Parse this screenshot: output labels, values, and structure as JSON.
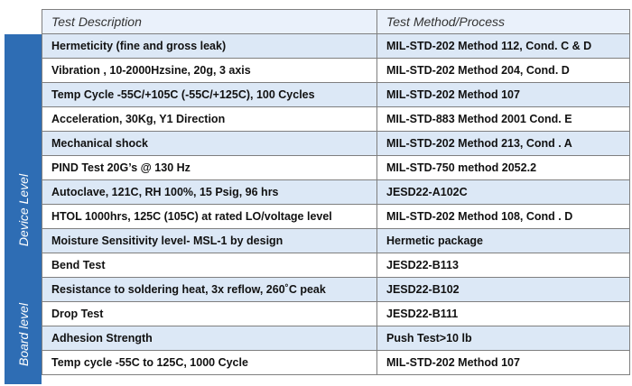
{
  "headers": {
    "description": "Test Description",
    "method": "Test Method/Process"
  },
  "groups": {
    "device": "Device Level",
    "board": "Board level"
  },
  "rows": [
    {
      "description": "Hermeticity  (fine and gross leak)",
      "method": "MIL-STD-202 Method 112, Cond. C & D"
    },
    {
      "description": "Vibration , 10-2000Hzsine, 20g, 3 axis",
      "method": "MIL-STD-202 Method 204, Cond. D"
    },
    {
      "description": "Temp Cycle -55C/+105C (-55C/+125C), 100 Cycles",
      "method": "MIL-STD-202 Method 107"
    },
    {
      "description": "Acceleration, 30Kg, Y1 Direction",
      "method": "MIL-STD-883 Method 2001 Cond. E"
    },
    {
      "description": "Mechanical shock",
      "method": "MIL-STD-202 Method 213, Cond . A"
    },
    {
      "description": "PIND Test 20G’s @ 130 Hz",
      "method": "MIL-STD-750 method 2052.2"
    },
    {
      "description": "Autoclave, 121C, RH 100%, 15 Psig, 96 hrs",
      "method": "JESD22-A102C"
    },
    {
      "description": "HTOL 1000hrs, 125C (105C) at rated LO/voltage level",
      "method": "MIL-STD-202 Method 108, Cond . D"
    },
    {
      "description": "Moisture Sensitivity level- MSL-1 by design",
      "method": "Hermetic package"
    },
    {
      "description": "Bend Test",
      "method": "JESD22-B113"
    },
    {
      "description": "Resistance to soldering heat, 3x reflow, 260˚C peak",
      "method": "JESD22-B102"
    },
    {
      "description": "Drop Test",
      "method": "JESD22-B111"
    },
    {
      "description": "Adhesion Strength",
      "method": "Push Test>10 lb"
    },
    {
      "description": "Temp cycle -55C to 125C, 1000 Cycle",
      "method": "MIL-STD-202 Method 107"
    }
  ],
  "colors": {
    "band": "#2e6db4",
    "shade": "#dce8f6",
    "header": "#eaf1fb"
  }
}
